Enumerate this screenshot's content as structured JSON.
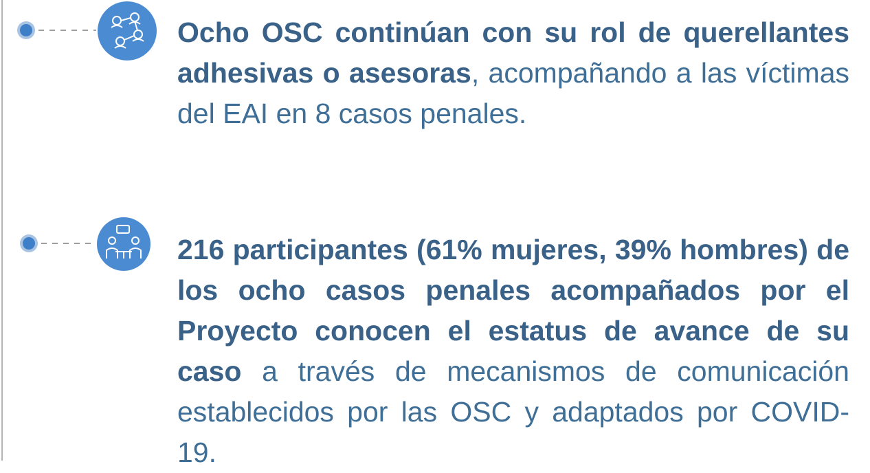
{
  "items": [
    {
      "bold": "Ocho OSC continúan con su rol de querellantes adhesivas o asesoras",
      "text": ", acompañando a las víctimas del EAI en 8 casos penales."
    },
    {
      "bold": "216 participantes (61% mujeres, 39% hombres) de los ocho casos penales acompañados por el Proyecto conocen el estatus de avance de su caso",
      "text": "a través de mecanismos de comunicación establecidos por las OSC y adaptados por COVID-19."
    }
  ]
}
